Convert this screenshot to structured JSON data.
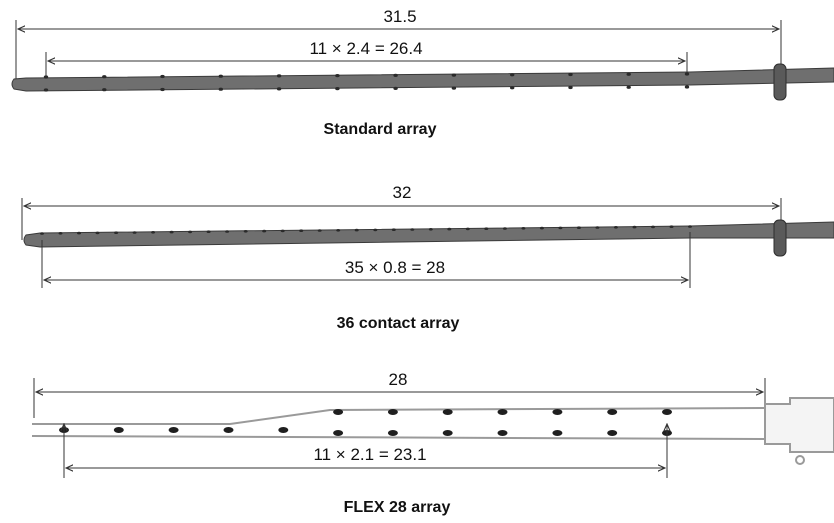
{
  "colors": {
    "background": "#ffffff",
    "electrode_fill": "#6f6f6f",
    "electrode_stroke": "#3a3a3a",
    "flex_outline": "#9a9a9a",
    "contact": "#1f1f1f",
    "dimension_line": "#333333"
  },
  "arrays": [
    {
      "caption": "Standard array",
      "total_length_label": "31.5",
      "contact_span_label": "11 × 2.4 = 26.4"
    },
    {
      "caption": "36 contact array",
      "total_length_label": "32",
      "contact_span_label": "35 × 0.8 = 28"
    },
    {
      "caption": "FLEX 28 array",
      "total_length_label": "28",
      "contact_span_label": "11 × 2.1 = 23.1"
    }
  ]
}
